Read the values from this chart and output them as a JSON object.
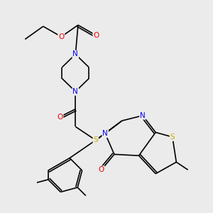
{
  "bg_color": "#ebebeb",
  "atom_colors": {
    "N": "#0000ee",
    "O": "#ee0000",
    "S": "#ccaa00"
  },
  "bond_color": "#000000",
  "font_size": 7.5,
  "figsize": [
    3.0,
    3.0
  ],
  "dpi": 100,
  "lw": 1.2
}
